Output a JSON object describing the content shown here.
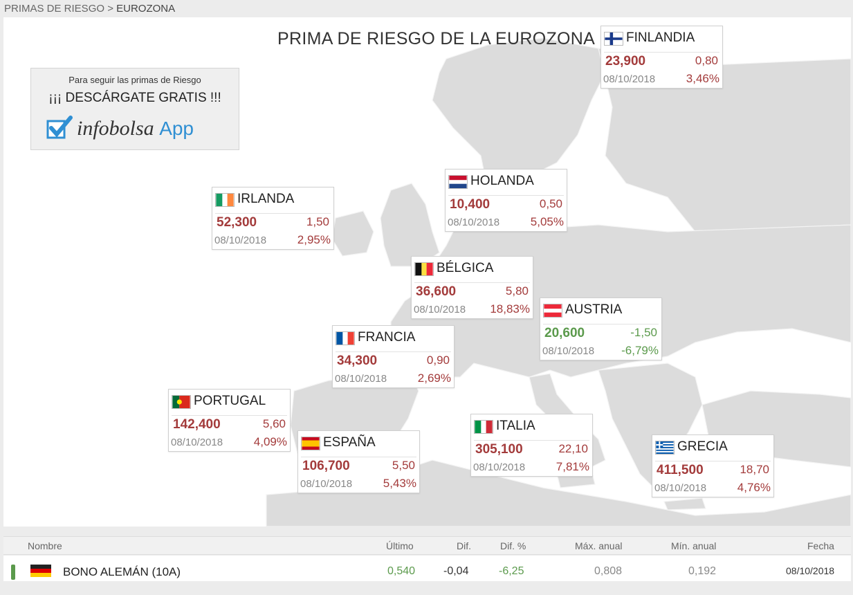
{
  "breadcrumb": {
    "parent": "PRIMAS DE RIESGO >",
    "current": "EUROZONA"
  },
  "map_title": "PRIMA DE RIESGO DE LA EUROZONA",
  "promo": {
    "line1": "Para seguir las primas de Riesgo",
    "line2": "¡¡¡ DESCÁRGATE GRATIS !!!",
    "brand": "infobolsa",
    "app": "App",
    "icon": "check-icon"
  },
  "countries": [
    {
      "name": "FINLANDIA",
      "flag": "finland",
      "value": "23,900",
      "change": "0,80",
      "date": "08/10/2018",
      "pct": "3,46%",
      "trend": "neg"
    },
    {
      "name": "HOLANDA",
      "flag": "netherlands",
      "value": "10,400",
      "change": "0,50",
      "date": "08/10/2018",
      "pct": "5,05%",
      "trend": "neg"
    },
    {
      "name": "IRLANDA",
      "flag": "ireland",
      "value": "52,300",
      "change": "1,50",
      "date": "08/10/2018",
      "pct": "2,95%",
      "trend": "neg"
    },
    {
      "name": "BÉLGICA",
      "flag": "belgium",
      "value": "36,600",
      "change": "5,80",
      "date": "08/10/2018",
      "pct": "18,83%",
      "trend": "neg"
    },
    {
      "name": "AUSTRIA",
      "flag": "austria",
      "value": "20,600",
      "change": "-1,50",
      "date": "08/10/2018",
      "pct": "-6,79%",
      "trend": "pos"
    },
    {
      "name": "FRANCIA",
      "flag": "france",
      "value": "34,300",
      "change": "0,90",
      "date": "08/10/2018",
      "pct": "2,69%",
      "trend": "neg"
    },
    {
      "name": "PORTUGAL",
      "flag": "portugal",
      "value": "142,400",
      "change": "5,60",
      "date": "08/10/2018",
      "pct": "4,09%",
      "trend": "neg"
    },
    {
      "name": "ESPAÑA",
      "flag": "spain",
      "value": "106,700",
      "change": "5,50",
      "date": "08/10/2018",
      "pct": "5,43%",
      "trend": "neg"
    },
    {
      "name": "ITALIA",
      "flag": "italy",
      "value": "305,100",
      "change": "22,10",
      "date": "08/10/2018",
      "pct": "7,81%",
      "trend": "neg"
    },
    {
      "name": "GRECIA",
      "flag": "greece",
      "value": "411,500",
      "change": "18,70",
      "date": "08/10/2018",
      "pct": "4,76%",
      "trend": "neg"
    }
  ],
  "table": {
    "headers": {
      "name": "Nombre",
      "last": "Último",
      "dif": "Dif.",
      "dif_pct": "Dif. %",
      "max": "Máx. anual",
      "min": "Mín. anual",
      "date": "Fecha"
    },
    "rows": [
      {
        "flag": "germany",
        "name": "BONO ALEMÁN (10A)",
        "last": "0,540",
        "dif": "-0,04",
        "dif_pct": "-6,25",
        "max": "0,808",
        "min": "0,192",
        "date": "08/10/2018"
      }
    ]
  },
  "colors": {
    "negative": "#a33b3b",
    "positive": "#5b9a4c",
    "land": "#dcdcdc",
    "sea": "#ffffff"
  }
}
